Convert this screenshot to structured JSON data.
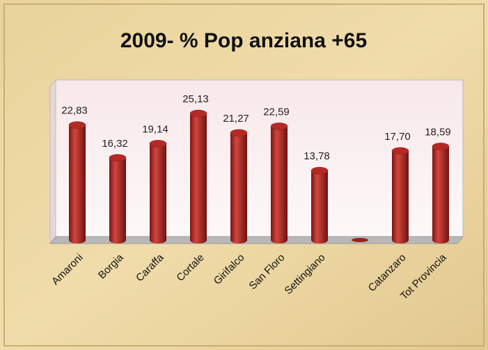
{
  "chart_data": {
    "type": "bar",
    "title": "2009- % Pop anziana +65",
    "categories": [
      "Amaroni",
      "Borgia",
      "Caraffa",
      "Cortale",
      "Girifalco",
      "San Floro",
      "Settingiano",
      null,
      "Catanzaro",
      "Tot Provincia"
    ],
    "values": [
      22.83,
      16.32,
      19.14,
      25.13,
      21.27,
      22.59,
      13.78,
      null,
      17.7,
      18.59
    ],
    "value_labels": [
      "22,83",
      "16,32",
      "19,14",
      "25,13",
      "21,27",
      "22,59",
      "13,78",
      null,
      "17,70",
      "18,59"
    ],
    "color": "#b52a25"
  }
}
